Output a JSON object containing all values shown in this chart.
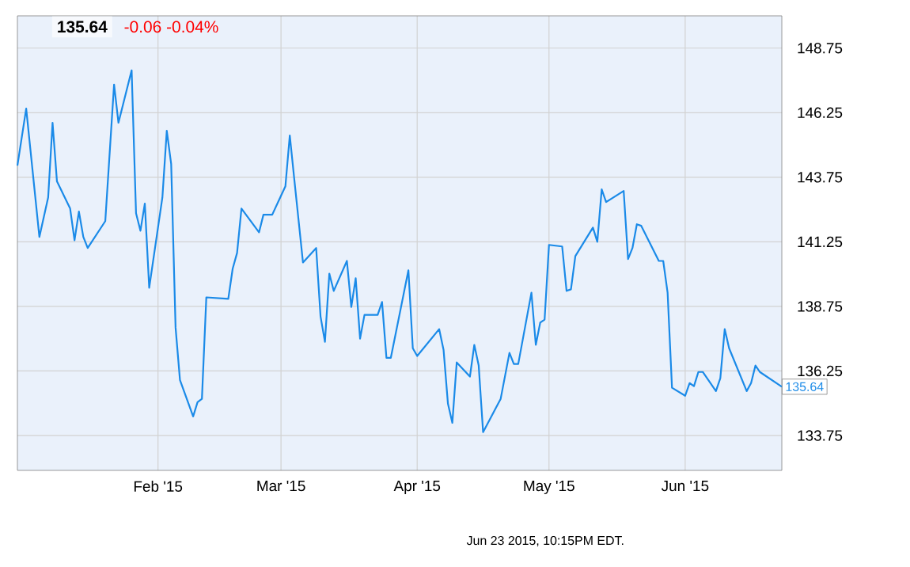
{
  "chart_data": {
    "type": "line",
    "title": "135.64",
    "subtitle": "-0.06  -0.04%",
    "x": [
      "2014-12-31",
      "2015-01-02",
      "2015-01-05",
      "2015-01-07",
      "2015-01-08",
      "2015-01-09",
      "2015-01-12",
      "2015-01-13",
      "2015-01-14",
      "2015-01-15",
      "2015-01-16",
      "2015-01-20",
      "2015-01-22",
      "2015-01-23",
      "2015-01-26",
      "2015-01-27",
      "2015-01-28",
      "2015-01-29",
      "2015-01-30",
      "2015-02-02",
      "2015-02-03",
      "2015-02-04",
      "2015-02-05",
      "2015-02-06",
      "2015-02-09",
      "2015-02-10",
      "2015-02-11",
      "2015-02-12",
      "2015-02-17",
      "2015-02-18",
      "2015-02-19",
      "2015-02-20",
      "2015-02-24",
      "2015-02-25",
      "2015-02-27",
      "2015-03-02",
      "2015-03-03",
      "2015-03-04",
      "2015-03-06",
      "2015-03-09",
      "2015-03-10",
      "2015-03-11",
      "2015-03-12",
      "2015-03-13",
      "2015-03-16",
      "2015-03-17",
      "2015-03-18",
      "2015-03-19",
      "2015-03-20",
      "2015-03-23",
      "2015-03-24",
      "2015-03-25",
      "2015-03-26",
      "2015-03-30",
      "2015-03-31",
      "2015-04-01",
      "2015-04-06",
      "2015-04-07",
      "2015-04-08",
      "2015-04-09",
      "2015-04-10",
      "2015-04-13",
      "2015-04-14",
      "2015-04-15",
      "2015-04-16",
      "2015-04-20",
      "2015-04-22",
      "2015-04-23",
      "2015-04-24",
      "2015-04-27",
      "2015-04-28",
      "2015-04-29",
      "2015-04-30",
      "2015-05-01",
      "2015-05-04",
      "2015-05-05",
      "2015-05-06",
      "2015-05-07",
      "2015-05-11",
      "2015-05-12",
      "2015-05-13",
      "2015-05-14",
      "2015-05-18",
      "2015-05-19",
      "2015-05-20",
      "2015-05-21",
      "2015-05-22",
      "2015-05-26",
      "2015-05-27",
      "2015-05-28",
      "2015-05-29",
      "2015-06-01",
      "2015-06-02",
      "2015-06-03",
      "2015-06-04",
      "2015-06-05",
      "2015-06-08",
      "2015-06-09",
      "2015-06-10",
      "2015-06-11",
      "2015-06-15",
      "2015-06-16",
      "2015-06-17",
      "2015-06-18",
      "2015-06-23"
    ],
    "values": [
      144.2,
      146.41,
      141.44,
      142.97,
      145.86,
      143.59,
      142.54,
      141.31,
      142.42,
      141.44,
      141.01,
      142.05,
      147.34,
      145.86,
      147.89,
      142.36,
      141.68,
      142.73,
      139.47,
      142.97,
      145.55,
      144.26,
      137.93,
      135.9,
      134.49,
      135.04,
      135.17,
      139.1,
      139.04,
      140.21,
      140.82,
      142.54,
      141.62,
      142.3,
      142.3,
      143.4,
      145.37,
      143.71,
      140.45,
      141.01,
      138.36,
      137.38,
      140.02,
      139.35,
      140.51,
      138.73,
      139.84,
      137.5,
      138.42,
      138.42,
      138.92,
      136.76,
      136.76,
      140.15,
      137.13,
      136.83,
      137.87,
      137.07,
      134.98,
      134.24,
      136.58,
      136.03,
      137.26,
      136.46,
      133.88,
      135.17,
      136.95,
      136.52,
      136.52,
      139.28,
      137.26,
      138.12,
      138.24,
      141.13,
      141.07,
      139.35,
      139.41,
      140.7,
      141.8,
      141.25,
      143.28,
      142.79,
      143.22,
      140.58,
      141.01,
      141.93,
      141.87,
      140.51,
      140.51,
      139.28,
      135.6,
      135.29,
      135.78,
      135.66,
      136.21,
      136.21,
      135.47,
      135.97,
      137.87,
      137.13,
      135.47,
      135.78,
      136.46,
      136.21,
      135.64
    ],
    "value_labels": [
      null,
      null,
      null,
      null,
      null,
      null,
      null,
      null,
      null,
      null,
      null,
      null,
      null,
      null,
      null,
      null,
      null,
      null,
      null,
      null,
      null,
      null,
      null,
      null,
      null,
      null,
      null,
      null,
      null,
      null,
      null,
      null,
      null,
      null,
      null,
      null,
      null,
      null,
      null,
      null,
      null,
      null,
      null,
      null,
      null,
      null,
      null,
      null,
      null,
      null,
      null,
      null,
      null,
      null,
      null,
      null,
      null,
      null,
      null,
      null,
      null,
      null,
      null,
      null,
      null,
      null,
      null,
      null,
      null,
      null,
      null,
      null,
      null,
      null,
      null,
      null,
      null,
      null,
      null,
      null,
      null,
      null,
      null,
      null,
      null,
      null,
      null,
      null,
      null,
      null,
      null,
      null,
      null,
      null,
      null,
      null,
      null,
      null,
      null,
      null,
      null,
      null,
      null,
      null,
      "135.64"
    ],
    "color": "#1a8ae8",
    "xlim": [
      "2014-12-31",
      "2015-06-23"
    ],
    "xticks": [
      {
        "value": "2015-02-01",
        "label": "Feb '15"
      },
      {
        "value": "2015-03-01",
        "label": "Mar '15"
      },
      {
        "value": "2015-04-01",
        "label": "Apr '15"
      },
      {
        "value": "2015-05-01",
        "label": "May '15"
      },
      {
        "value": "2015-06-01",
        "label": "Jun '15"
      }
    ],
    "ylim": [
      132.4,
      150.0
    ],
    "yticks": [
      133.75,
      136.25,
      138.75,
      141.25,
      143.75,
      146.25,
      148.75
    ],
    "grid": true,
    "marker": "none",
    "line_style": "solid",
    "annotations": [
      "Jun 23 2015, 10:15PM EDT."
    ]
  }
}
